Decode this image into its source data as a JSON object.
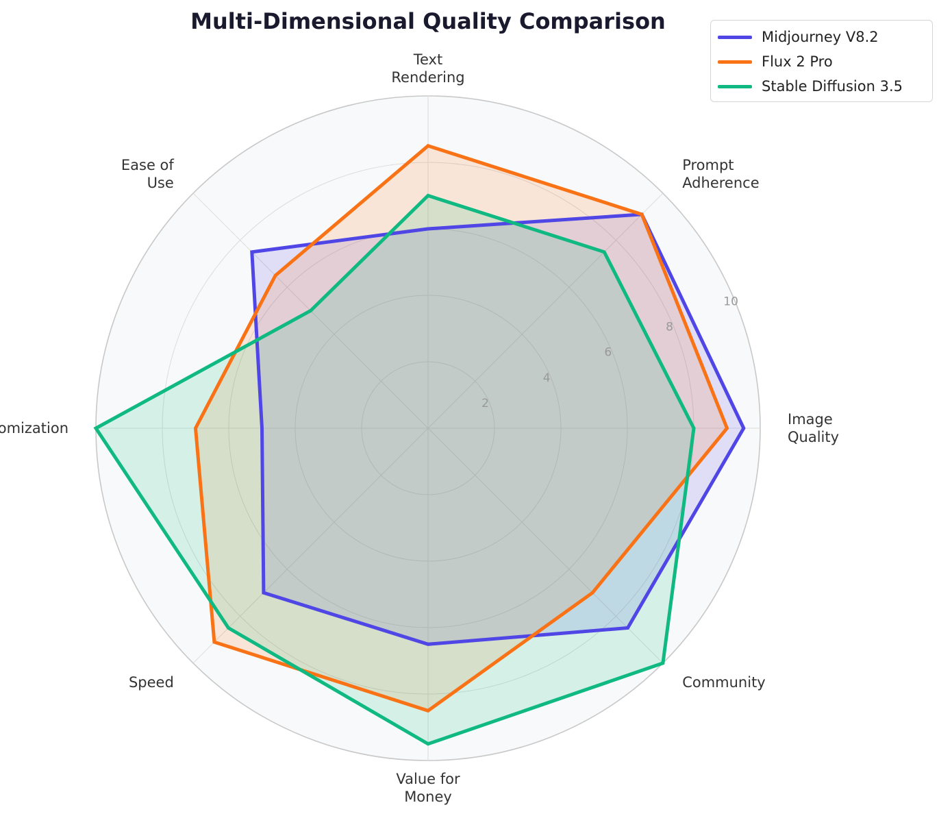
{
  "chart_data": {
    "type": "radar",
    "title": "Multi-Dimensional Quality Comparison",
    "axes": [
      [
        "Image",
        "Quality"
      ],
      [
        "Prompt",
        "Adherence"
      ],
      [
        "Text",
        "Rendering"
      ],
      [
        "Ease of",
        "Use"
      ],
      [
        "Customization"
      ],
      [
        "Speed"
      ],
      [
        "Value for",
        "Money"
      ],
      [
        "Community"
      ]
    ],
    "rlim": [
      0,
      10
    ],
    "rticks": [
      "2",
      "4",
      "6",
      "8",
      "10"
    ],
    "rtick_values": [
      2,
      4,
      6,
      8,
      10
    ],
    "grid": true,
    "legend_position": "top-right",
    "series": [
      {
        "name": "Midjourney V8.2",
        "color": "#4f46e5",
        "values": [
          9.5,
          9.1,
          6.0,
          7.5,
          5.0,
          7.0,
          6.5,
          8.5
        ]
      },
      {
        "name": "Flux 2 Pro",
        "color": "#f97316",
        "values": [
          9.0,
          9.1,
          8.5,
          6.5,
          7.0,
          9.1,
          8.5,
          7.0
        ]
      },
      {
        "name": "Stable Diffusion 3.5",
        "color": "#10b981",
        "values": [
          8.0,
          7.5,
          7.0,
          5.0,
          10.0,
          8.5,
          9.5,
          10.0
        ]
      }
    ]
  }
}
